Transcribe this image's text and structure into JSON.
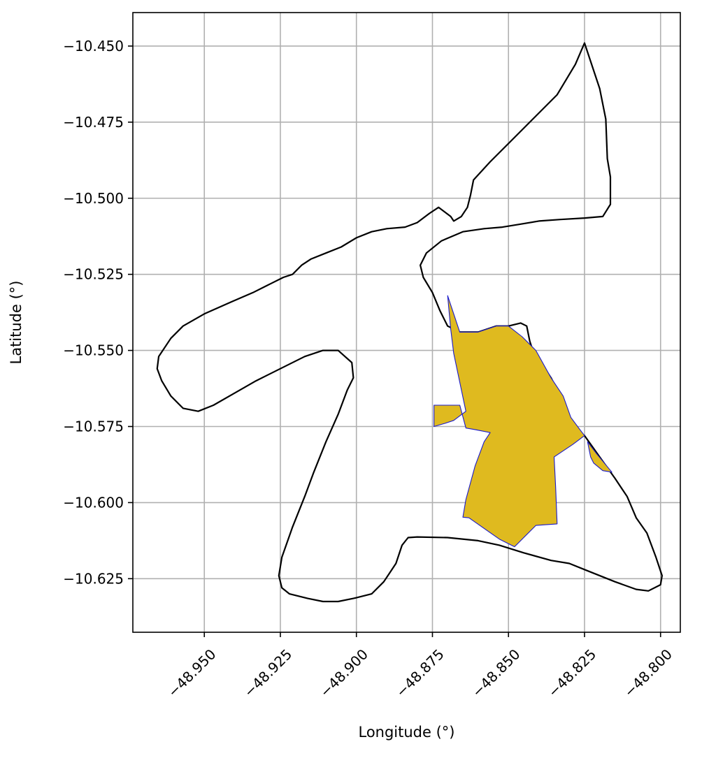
{
  "chart_data": {
    "type": "map",
    "title": "",
    "xlabel": "Longitude (°)",
    "ylabel": "Latitude (°)",
    "xlim": [
      -48.9735,
      -48.7935
    ],
    "ylim": [
      -10.6426,
      -10.439
    ],
    "grid": true,
    "x_ticks": [
      {
        "value": -48.95,
        "label": "−48.950"
      },
      {
        "value": -48.925,
        "label": "−48.925"
      },
      {
        "value": -48.9,
        "label": "−48.900"
      },
      {
        "value": -48.875,
        "label": "−48.875"
      },
      {
        "value": -48.85,
        "label": "−48.850"
      },
      {
        "value": -48.825,
        "label": "−48.825"
      },
      {
        "value": -48.8,
        "label": "−48.800"
      }
    ],
    "y_ticks": [
      {
        "value": -10.45,
        "label": "−10.450"
      },
      {
        "value": -10.475,
        "label": "−10.475"
      },
      {
        "value": -10.5,
        "label": "−10.500"
      },
      {
        "value": -10.525,
        "label": "−10.525"
      },
      {
        "value": -10.55,
        "label": "−10.550"
      },
      {
        "value": -10.575,
        "label": "−10.575"
      },
      {
        "value": -10.6,
        "label": "−10.600"
      },
      {
        "value": -10.625,
        "label": "−10.625"
      }
    ],
    "series": [
      {
        "name": "boundary-outline",
        "kind": "outline",
        "stroke": "#000000",
        "fill": "none",
        "points": [
          [
            -48.825,
            -10.449
          ],
          [
            -48.82,
            -10.464
          ],
          [
            -48.818,
            -10.474
          ],
          [
            -48.8175,
            -10.487
          ],
          [
            -48.8165,
            -10.493
          ],
          [
            -48.8165,
            -10.502
          ],
          [
            -48.819,
            -10.506
          ],
          [
            -48.825,
            -10.5065
          ],
          [
            -48.833,
            -10.507
          ],
          [
            -48.84,
            -10.5075
          ],
          [
            -48.846,
            -10.5085
          ],
          [
            -48.852,
            -10.5095
          ],
          [
            -48.858,
            -10.51
          ],
          [
            -48.865,
            -10.511
          ],
          [
            -48.872,
            -10.514
          ],
          [
            -48.877,
            -10.518
          ],
          [
            -48.879,
            -10.522
          ],
          [
            -48.878,
            -10.526
          ],
          [
            -48.875,
            -10.531
          ],
          [
            -48.8725,
            -10.537
          ],
          [
            -48.87,
            -10.542
          ],
          [
            -48.866,
            -10.544
          ],
          [
            -48.86,
            -10.544
          ],
          [
            -48.854,
            -10.542
          ],
          [
            -48.85,
            -10.542
          ],
          [
            -48.846,
            -10.541
          ],
          [
            -48.844,
            -10.542
          ],
          [
            -48.843,
            -10.547
          ],
          [
            -48.842,
            -10.55
          ],
          [
            -48.836,
            -10.559
          ],
          [
            -48.832,
            -10.567
          ],
          [
            -48.828,
            -10.576
          ],
          [
            -48.825,
            -10.578
          ],
          [
            -48.82,
            -10.585
          ],
          [
            -48.815,
            -10.592
          ],
          [
            -48.811,
            -10.598
          ],
          [
            -48.808,
            -10.605
          ],
          [
            -48.8045,
            -10.61
          ],
          [
            -48.8015,
            -10.618
          ],
          [
            -48.7995,
            -10.624
          ],
          [
            -48.8,
            -10.627
          ],
          [
            -48.804,
            -10.629
          ],
          [
            -48.808,
            -10.6285
          ],
          [
            -48.815,
            -10.626
          ],
          [
            -48.825,
            -10.622
          ],
          [
            -48.83,
            -10.62
          ],
          [
            -48.836,
            -10.619
          ],
          [
            -48.845,
            -10.6165
          ],
          [
            -48.853,
            -10.614
          ],
          [
            -48.86,
            -10.6125
          ],
          [
            -48.87,
            -10.6115
          ],
          [
            -48.88,
            -10.6113
          ],
          [
            -48.883,
            -10.6115
          ],
          [
            -48.885,
            -10.614
          ],
          [
            -48.887,
            -10.62
          ],
          [
            -48.889,
            -10.623
          ],
          [
            -48.891,
            -10.626
          ],
          [
            -48.895,
            -10.63
          ],
          [
            -48.901,
            -10.6315
          ],
          [
            -48.906,
            -10.6325
          ],
          [
            -48.911,
            -10.6325
          ],
          [
            -48.916,
            -10.6315
          ],
          [
            -48.922,
            -10.63
          ],
          [
            -48.9245,
            -10.628
          ],
          [
            -48.9255,
            -10.624
          ],
          [
            -48.9245,
            -10.618
          ],
          [
            -48.921,
            -10.608
          ],
          [
            -48.917,
            -10.598
          ],
          [
            -48.914,
            -10.59
          ],
          [
            -48.91,
            -10.58
          ],
          [
            -48.906,
            -10.571
          ],
          [
            -48.903,
            -10.563
          ],
          [
            -48.901,
            -10.559
          ],
          [
            -48.9015,
            -10.554
          ],
          [
            -48.906,
            -10.55
          ],
          [
            -48.911,
            -10.55
          ],
          [
            -48.917,
            -10.552
          ],
          [
            -48.925,
            -10.556
          ],
          [
            -48.933,
            -10.56
          ],
          [
            -48.94,
            -10.564
          ],
          [
            -48.947,
            -10.568
          ],
          [
            -48.952,
            -10.57
          ],
          [
            -48.957,
            -10.569
          ],
          [
            -48.961,
            -10.565
          ],
          [
            -48.964,
            -10.56
          ],
          [
            -48.9655,
            -10.556
          ],
          [
            -48.965,
            -10.552
          ],
          [
            -48.961,
            -10.546
          ],
          [
            -48.957,
            -10.542
          ],
          [
            -48.95,
            -10.538
          ],
          [
            -48.941,
            -10.534
          ],
          [
            -48.934,
            -10.531
          ],
          [
            -48.928,
            -10.528
          ],
          [
            -48.924,
            -10.526
          ],
          [
            -48.921,
            -10.525
          ],
          [
            -48.918,
            -10.522
          ],
          [
            -48.915,
            -10.52
          ],
          [
            -48.91,
            -10.518
          ],
          [
            -48.905,
            -10.516
          ],
          [
            -48.9,
            -10.513
          ],
          [
            -48.895,
            -10.511
          ],
          [
            -48.89,
            -10.51
          ],
          [
            -48.884,
            -10.5095
          ],
          [
            -48.88,
            -10.508
          ],
          [
            -48.876,
            -10.505
          ],
          [
            -48.873,
            -10.503
          ],
          [
            -48.869,
            -10.506
          ],
          [
            -48.868,
            -10.5075
          ],
          [
            -48.8655,
            -10.506
          ],
          [
            -48.8635,
            -10.503
          ],
          [
            -48.8625,
            -10.499
          ],
          [
            -48.8615,
            -10.494
          ],
          [
            -48.856,
            -10.488
          ],
          [
            -48.849,
            -10.481
          ],
          [
            -48.842,
            -10.474
          ],
          [
            -48.834,
            -10.466
          ],
          [
            -48.828,
            -10.456
          ],
          [
            -48.825,
            -10.449
          ]
        ]
      },
      {
        "name": "selected-area-main",
        "kind": "filled",
        "stroke": "#1a1acc",
        "fill": "#dfba1f",
        "points": [
          [
            -48.87,
            -10.532
          ],
          [
            -48.866,
            -10.544
          ],
          [
            -48.86,
            -10.544
          ],
          [
            -48.854,
            -10.542
          ],
          [
            -48.85,
            -10.542
          ],
          [
            -48.8455,
            -10.5455
          ],
          [
            -48.841,
            -10.55
          ],
          [
            -48.836,
            -10.559
          ],
          [
            -48.832,
            -10.565
          ],
          [
            -48.8295,
            -10.572
          ],
          [
            -48.8265,
            -10.576
          ],
          [
            -48.825,
            -10.578
          ],
          [
            -48.829,
            -10.581
          ],
          [
            -48.832,
            -10.583
          ],
          [
            -48.835,
            -10.585
          ],
          [
            -48.8345,
            -10.595
          ],
          [
            -48.834,
            -10.607
          ],
          [
            -48.841,
            -10.6075
          ],
          [
            -48.848,
            -10.6145
          ],
          [
            -48.853,
            -10.612
          ],
          [
            -48.863,
            -10.605
          ],
          [
            -48.865,
            -10.6048
          ],
          [
            -48.864,
            -10.599
          ],
          [
            -48.861,
            -10.588
          ],
          [
            -48.858,
            -10.58
          ],
          [
            -48.856,
            -10.577
          ],
          [
            -48.861,
            -10.576
          ],
          [
            -48.864,
            -10.5755
          ],
          [
            -48.866,
            -10.568
          ],
          [
            -48.869,
            -10.568
          ],
          [
            -48.8745,
            -10.568
          ],
          [
            -48.8745,
            -10.575
          ],
          [
            -48.871,
            -10.574
          ],
          [
            -48.868,
            -10.573
          ],
          [
            -48.864,
            -10.57
          ],
          [
            -48.868,
            -10.551
          ],
          [
            -48.869,
            -10.543
          ],
          [
            -48.87,
            -10.532
          ]
        ]
      },
      {
        "name": "selected-area-small",
        "kind": "filled",
        "stroke": "#1a1acc",
        "fill": "#dfba1f",
        "points": [
          [
            -48.824,
            -10.58
          ],
          [
            -48.823,
            -10.585
          ],
          [
            -48.822,
            -10.587
          ],
          [
            -48.819,
            -10.5895
          ],
          [
            -48.816,
            -10.59
          ],
          [
            -48.821,
            -10.584
          ],
          [
            -48.824,
            -10.58
          ]
        ]
      }
    ]
  }
}
